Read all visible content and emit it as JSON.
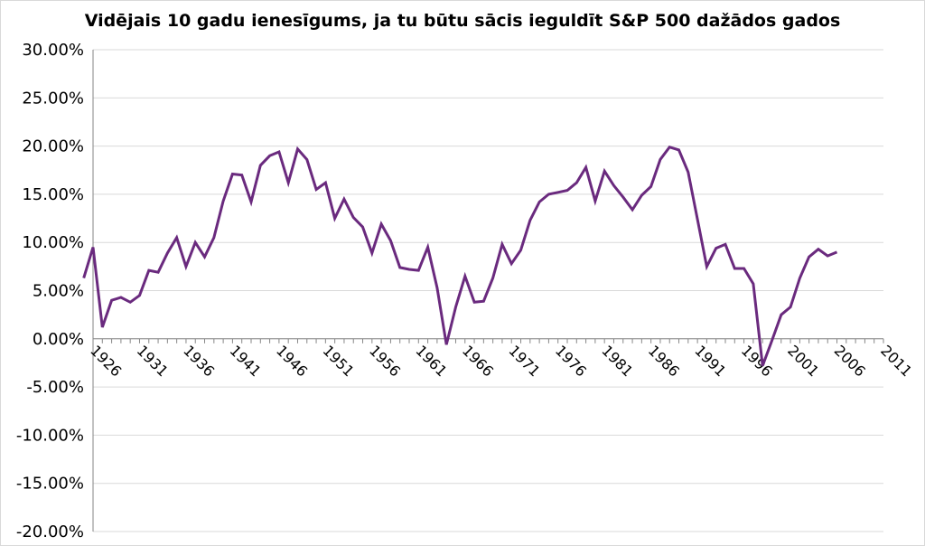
{
  "chart_data": {
    "type": "line",
    "title": "Vidējais 10 gadu ienesīgums, ja tu būtu sācis ieguldīt S&P 500 dažādos gados",
    "xlabel": "",
    "ylabel": "",
    "ylim": [
      -20,
      30
    ],
    "xlim": [
      1926,
      2011
    ],
    "y_tick_labels": [
      "30.00%",
      "25.00%",
      "20.00%",
      "15.00%",
      "10.00%",
      "5.00%",
      "0.00%",
      "-5.00%",
      "-10.00%",
      "-15.00%",
      "-20.00%"
    ],
    "y_tick_values": [
      30,
      25,
      20,
      15,
      10,
      5,
      0,
      -5,
      -10,
      -15,
      -20
    ],
    "x_tick_labels": [
      "1926",
      "1931",
      "1936",
      "1941",
      "1946",
      "1951",
      "1956",
      "1961",
      "1966",
      "1971",
      "1976",
      "1981",
      "1986",
      "1991",
      "1996",
      "2001",
      "2006",
      "2011"
    ],
    "grid": "horizontal",
    "line_color": "#6a2a7e",
    "series": [
      {
        "x": [
          1925,
          1926,
          1927,
          1928,
          1929,
          1930,
          1931,
          1932,
          1933,
          1934,
          1935,
          1936,
          1937,
          1938,
          1939,
          1940,
          1941,
          1942,
          1943,
          1944,
          1945,
          1946,
          1947,
          1948,
          1949,
          1950,
          1951,
          1952,
          1953,
          1954,
          1955,
          1956,
          1957,
          1958,
          1959,
          1960,
          1961,
          1962,
          1963,
          1964,
          1965,
          1966,
          1967,
          1968,
          1969,
          1970,
          1971,
          1972,
          1973,
          1974,
          1975,
          1976,
          1977,
          1978,
          1979,
          1980,
          1981,
          1982,
          1983,
          1984,
          1985,
          1986,
          1987,
          1988,
          1989,
          1990,
          1991,
          1992,
          1993,
          1994,
          1995,
          1996,
          1997,
          1998,
          1999,
          2000,
          2001,
          2002,
          2003,
          2004,
          2005,
          2006
        ],
        "values": [
          6.3,
          9.5,
          1.2,
          4.0,
          4.3,
          3.8,
          4.5,
          7.1,
          6.9,
          8.9,
          10.5,
          7.5,
          10.0,
          8.5,
          10.5,
          14.3,
          17.1,
          17.0,
          14.2,
          18.0,
          19.0,
          19.4,
          16.2,
          19.7,
          18.6,
          15.5,
          16.2,
          12.5,
          14.5,
          12.6,
          11.6,
          8.9,
          11.9,
          10.2,
          7.4,
          7.2,
          7.1,
          9.5,
          5.3,
          -0.6,
          3.3,
          6.5,
          3.8,
          3.9,
          6.3,
          9.8,
          7.8,
          9.2,
          12.3,
          14.2,
          15.0,
          15.2,
          15.4,
          16.2,
          17.8,
          14.3,
          17.4,
          15.9,
          14.7,
          13.4,
          14.9,
          15.8,
          18.6,
          19.9,
          19.6,
          17.3,
          12.4,
          7.5,
          9.4,
          9.8,
          7.3,
          7.3,
          5.7,
          -2.8,
          -0.2,
          2.5,
          3.3,
          6.3,
          8.5,
          9.3,
          8.6,
          9.0
        ]
      }
    ]
  }
}
